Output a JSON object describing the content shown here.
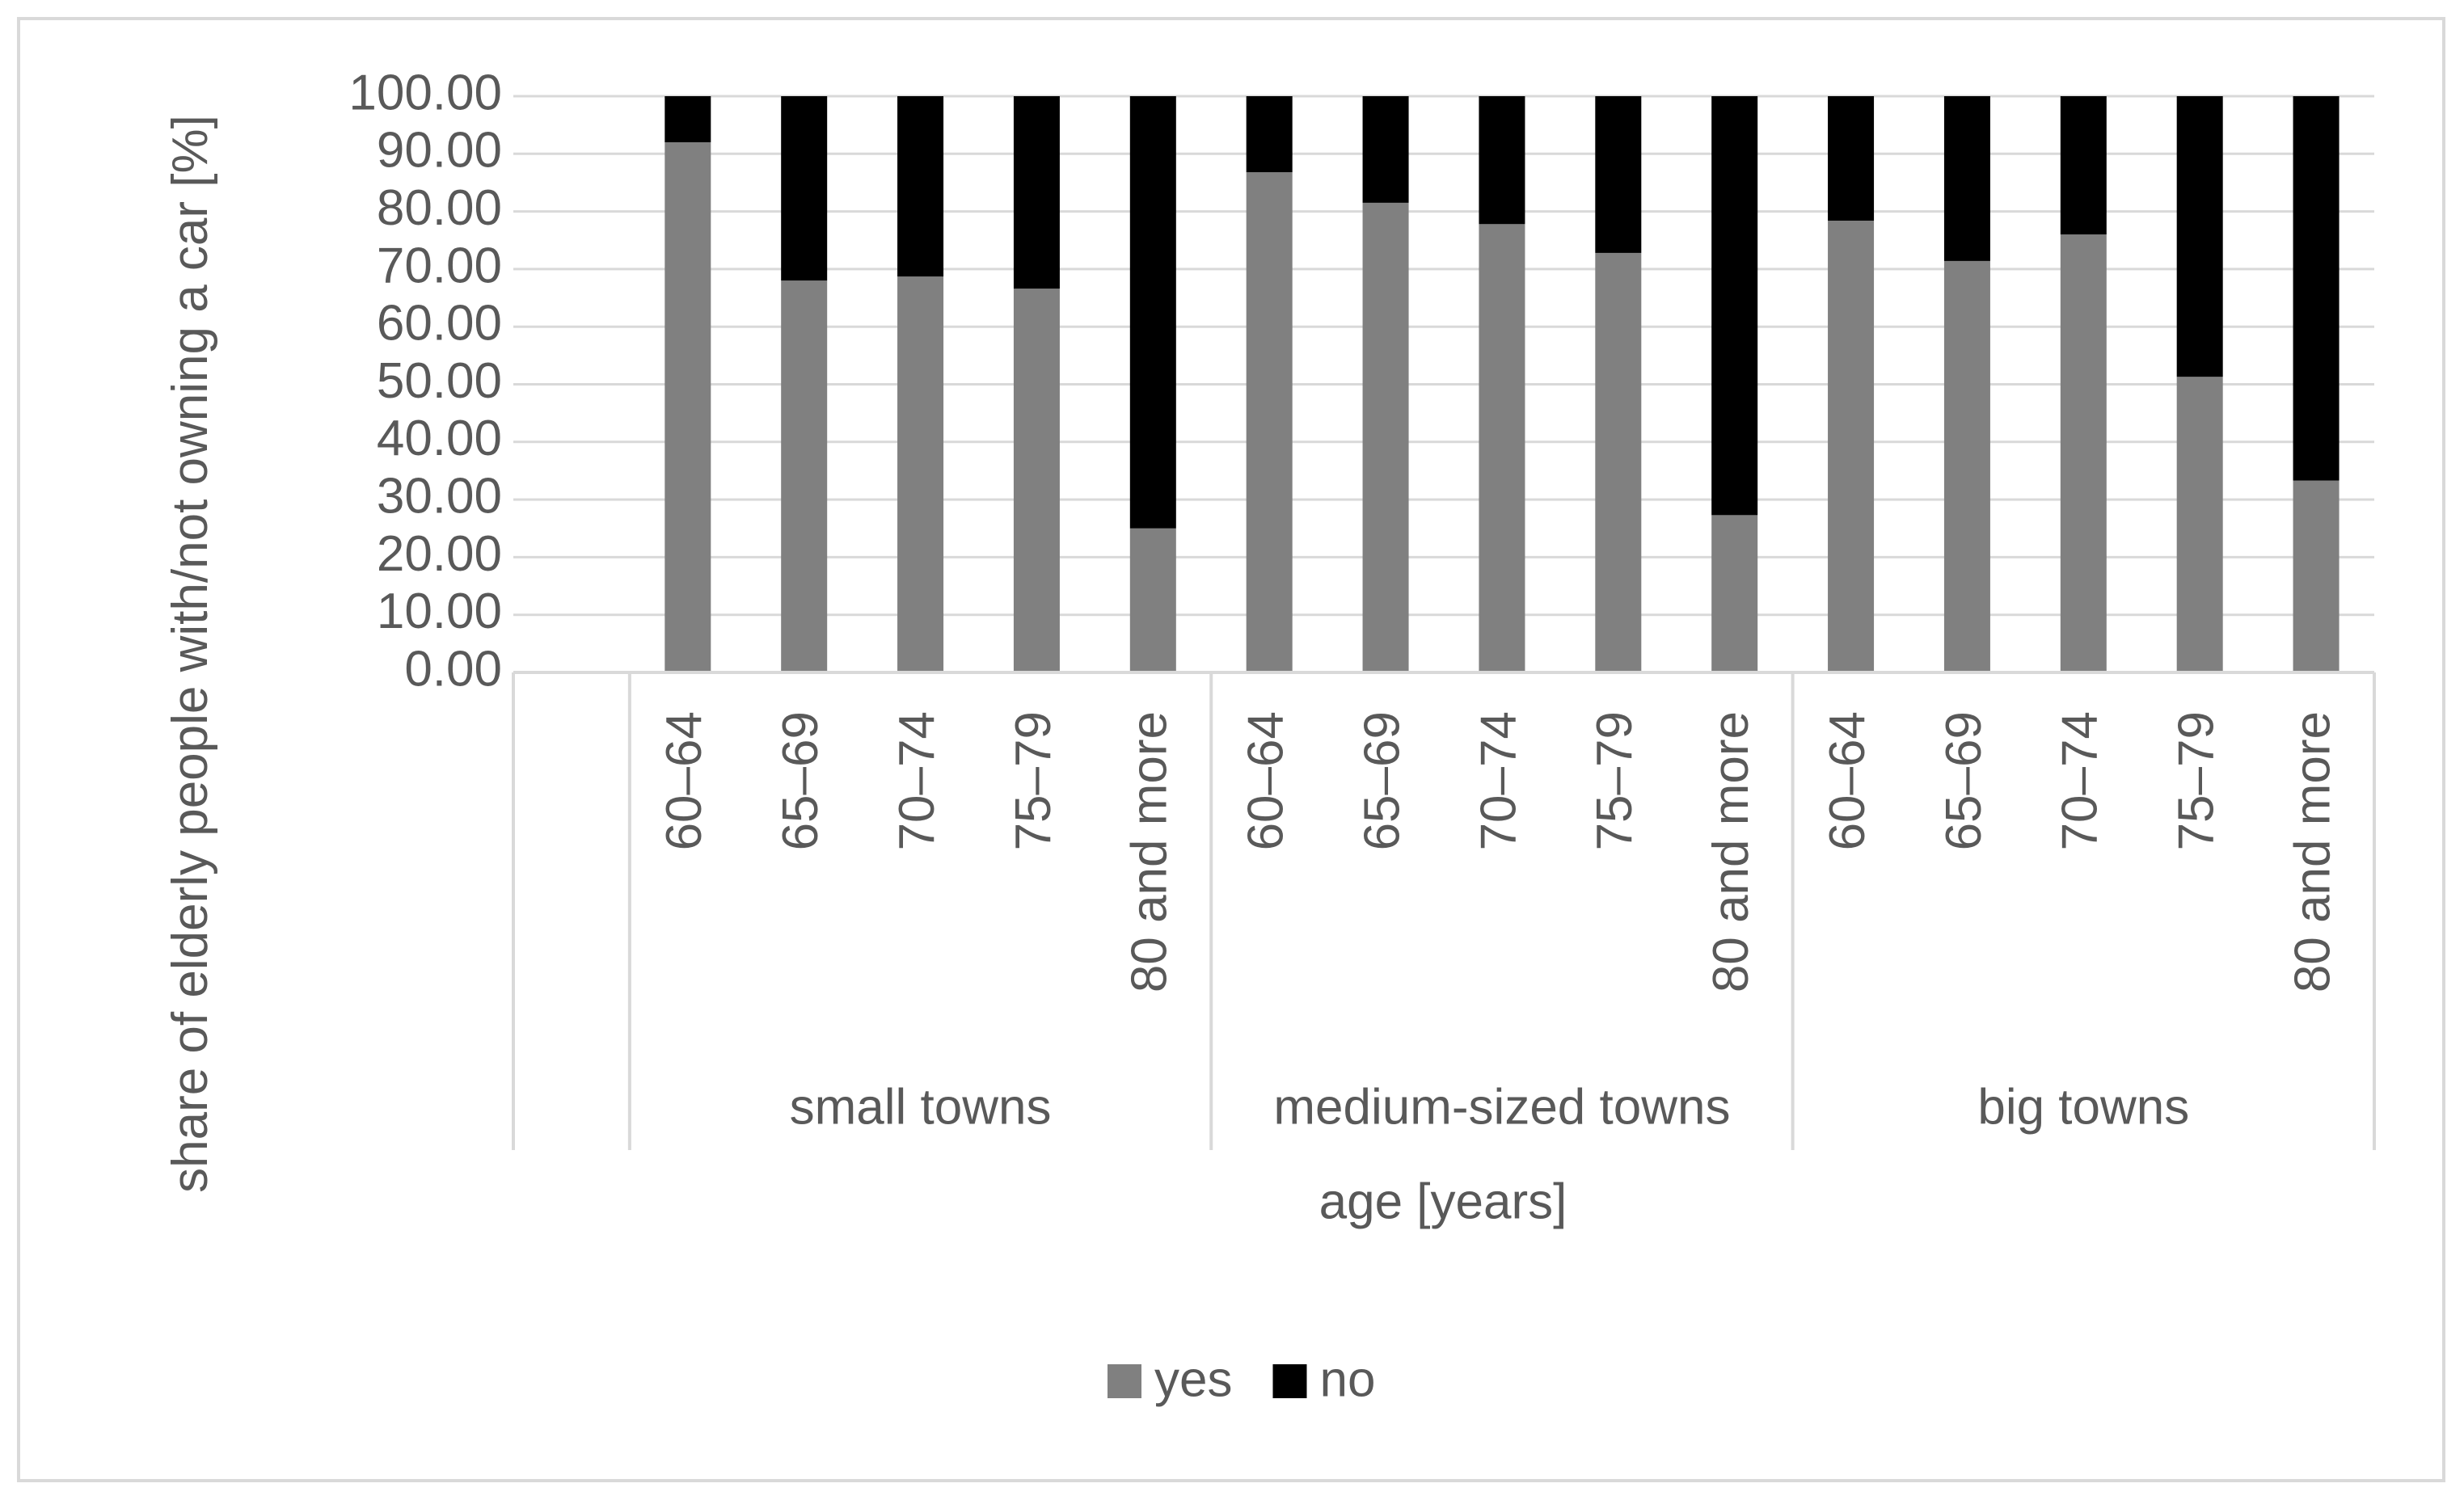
{
  "chart_data": {
    "type": "stacked_bar",
    "y_label": "share of elderly people with/not owning a car [%]",
    "x_label": "age [years]",
    "groups": [
      {
        "name": null,
        "categories": [
          null
        ]
      },
      {
        "name": "small towns",
        "categories": [
          "60–64",
          "65–69",
          "70–74",
          "75–79",
          "80 and more"
        ]
      },
      {
        "name": "medium-sized towns",
        "categories": [
          "60–64",
          "65–69",
          "70–74",
          "75–79",
          "80 and more"
        ]
      },
      {
        "name": "big towns",
        "categories": [
          "60–64",
          "65–69",
          "70–74",
          "75–79",
          "80 and more"
        ]
      }
    ],
    "series": [
      {
        "name": "yes",
        "color": "#808080",
        "values": [
          null,
          92,
          68,
          68.7,
          66.6,
          25,
          86.8,
          81.5,
          77.8,
          72.8,
          27.3,
          78.4,
          71.4,
          76,
          51.3,
          33.3
        ]
      },
      {
        "name": "no",
        "color": "#000000",
        "values": [
          null,
          8,
          32,
          31.3,
          33.4,
          75,
          13.2,
          18.5,
          22.2,
          27.2,
          72.7,
          21.6,
          28.6,
          24,
          48.7,
          66.7
        ]
      }
    ],
    "ylim": [
      0,
      100
    ],
    "yticks": [
      {
        "value": 0,
        "label": "0.00"
      },
      {
        "value": 10,
        "label": "10.00"
      },
      {
        "value": 20,
        "label": "20.00"
      },
      {
        "value": 30,
        "label": "30.00"
      },
      {
        "value": 40,
        "label": "40.00"
      },
      {
        "value": 50,
        "label": "50.00"
      },
      {
        "value": 60,
        "label": "60.00"
      },
      {
        "value": 70,
        "label": "70.00"
      },
      {
        "value": 80,
        "label": "80.00"
      },
      {
        "value": 90,
        "label": "90.00"
      },
      {
        "value": 100,
        "label": "100.00"
      }
    ],
    "grid": true,
    "legend": "bottom"
  }
}
